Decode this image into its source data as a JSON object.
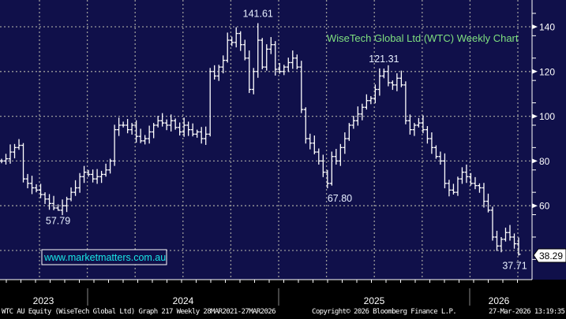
{
  "chart_data": {
    "type": "ohlc-bar",
    "title": "WiseTech Global Ltd (WTC) Weekly Chart",
    "watermark": "www.marketmatters.com.au",
    "y_axis": {
      "ticks": [
        60,
        80,
        100,
        120,
        140
      ],
      "range": [
        32,
        150
      ],
      "position": "right"
    },
    "x_axis": {
      "year_labels": [
        "2023",
        "2024",
        "2025",
        "2026"
      ]
    },
    "last_price": "38.29",
    "closes": [
      80,
      81,
      84,
      86,
      87,
      72,
      70,
      68,
      67,
      65,
      63,
      61,
      59,
      58,
      60,
      63,
      66,
      68,
      73,
      75,
      74,
      72,
      73,
      74,
      76,
      80,
      94,
      96,
      96,
      94,
      96,
      91,
      89,
      90,
      93,
      96,
      98,
      97,
      96,
      98,
      95,
      93,
      96,
      94,
      92,
      93,
      90,
      92,
      120,
      118,
      122,
      125,
      134,
      133,
      137,
      132,
      126,
      112,
      120,
      134,
      122,
      130,
      132,
      121,
      120,
      122,
      124,
      126,
      122,
      103,
      90,
      88,
      84,
      80,
      75,
      70,
      82,
      80,
      86,
      90,
      96,
      98,
      101,
      104,
      107,
      108,
      112,
      118,
      120,
      115,
      114,
      117,
      114,
      98,
      94,
      96,
      97,
      94,
      90,
      86,
      82,
      80,
      70,
      67,
      66,
      72,
      75,
      73,
      70,
      69,
      68,
      62,
      58,
      46,
      42,
      45,
      48,
      46,
      43,
      38.29
    ],
    "annotations": [
      {
        "label": "141.61",
        "value": 141.61,
        "index": 59,
        "type": "high"
      },
      {
        "label": "57.79",
        "value": 57.79,
        "index": 13,
        "type": "low"
      },
      {
        "label": "67.80",
        "value": 67.8,
        "index": 75,
        "type": "low"
      },
      {
        "label": "121.31",
        "value": 121.31,
        "index": 88,
        "type": "high"
      },
      {
        "label": "37.71",
        "value": 37.71,
        "index": 119,
        "type": "low"
      }
    ]
  },
  "footer": {
    "left": "WTC AU Equity (WiseTech Global Ltd) Graph 217 Weekly 28MAR2021-27MAR2026",
    "center": "Copyright© 2026 Bloomberg Finance L.P.",
    "right": "27-Mar-2026 13:19:35"
  },
  "colors": {
    "background": "#10104a",
    "bars": "#ffffff",
    "title": "#7fe07f",
    "watermark": "#19e6e6",
    "grid": "#9a9a9a"
  }
}
